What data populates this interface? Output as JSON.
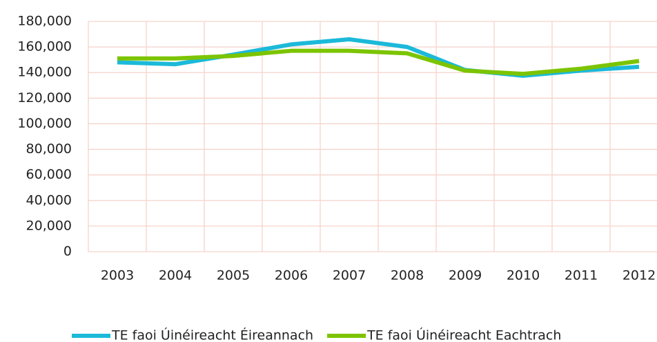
{
  "chart_data": {
    "type": "line",
    "categories": [
      "2003",
      "2004",
      "2005",
      "2006",
      "2007",
      "2008",
      "2009",
      "2010",
      "2011",
      "2012"
    ],
    "series": [
      {
        "name": "TE faoi Úinéireacht Éireannach",
        "color": "#1cb9d9",
        "values": [
          148000,
          146500,
          154000,
          162000,
          166000,
          160000,
          142000,
          137500,
          141500,
          144500
        ]
      },
      {
        "name": "TE faoi Úinéireacht Eachtrach",
        "color": "#7cc400",
        "values": [
          151000,
          151000,
          153000,
          157000,
          157000,
          155000,
          141500,
          139000,
          143000,
          149000
        ]
      }
    ],
    "ylim": [
      0,
      180000
    ],
    "yticks": [
      0,
      {
        "value": 20000,
        "label": "20,000"
      },
      {
        "value": 40000,
        "label": "40,000"
      },
      {
        "value": 60000,
        "label": "60,000"
      },
      {
        "value": 80000,
        "label": "80,000"
      },
      {
        "value": 100000,
        "label": "100,000"
      },
      {
        "value": 120000,
        "label": "120,000"
      },
      {
        "value": 140000,
        "label": "140,000"
      },
      {
        "value": 160000,
        "label": "160,000"
      },
      {
        "value": 180000,
        "label": "180,000"
      }
    ],
    "grid": true,
    "legend": "bottom"
  }
}
